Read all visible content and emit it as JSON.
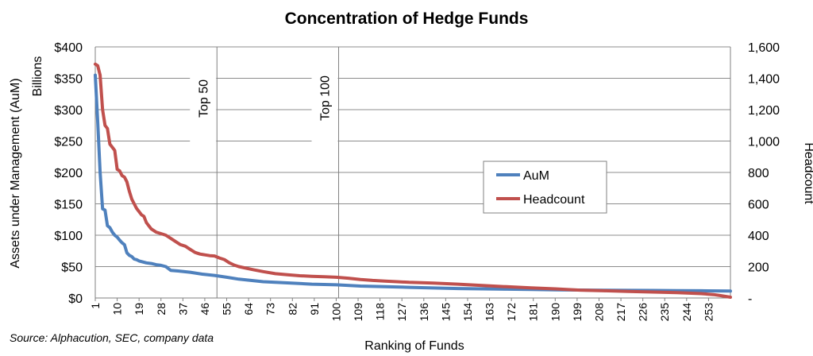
{
  "chart_data": {
    "type": "line",
    "title": "Concentration of Hedge Funds",
    "xlabel": "Ranking of Funds",
    "ylabel_left": "Assets under Management (AuM)",
    "ylabel_left_unit": "Billions",
    "ylabel_right": "Headcount",
    "source": "Source: Alphacution, SEC, company data",
    "legend_position": "center-right",
    "grid": true,
    "xlim": [
      1,
      262
    ],
    "ylim_left": [
      0,
      400
    ],
    "ylim_right": [
      0,
      1600
    ],
    "x_ticks": [
      1,
      10,
      19,
      28,
      37,
      46,
      55,
      64,
      73,
      82,
      91,
      100,
      109,
      118,
      127,
      136,
      145,
      154,
      163,
      172,
      181,
      190,
      199,
      208,
      217,
      226,
      235,
      244,
      253
    ],
    "y_ticks_left": [
      "$0",
      "$50",
      "$100",
      "$150",
      "$200",
      "$250",
      "$300",
      "$350",
      "$400"
    ],
    "y_ticks_right": [
      "-",
      "200",
      "400",
      "600",
      "800",
      "1,000",
      "1,200",
      "1,400",
      "1,600"
    ],
    "annotations": [
      {
        "text": "Top 50",
        "x": 51
      },
      {
        "text": "Top 100",
        "x": 101
      }
    ],
    "series": [
      {
        "name": "AuM",
        "axis": "left",
        "color": "#4F81BD",
        "points": [
          [
            1,
            355
          ],
          [
            2,
            280
          ],
          [
            3,
            200
          ],
          [
            4,
            142
          ],
          [
            5,
            140
          ],
          [
            6,
            115
          ],
          [
            7,
            112
          ],
          [
            8,
            105
          ],
          [
            9,
            100
          ],
          [
            10,
            97
          ],
          [
            11,
            92
          ],
          [
            12,
            88
          ],
          [
            13,
            85
          ],
          [
            14,
            72
          ],
          [
            15,
            68
          ],
          [
            16,
            66
          ],
          [
            17,
            62
          ],
          [
            18,
            61
          ],
          [
            19,
            59
          ],
          [
            20,
            58
          ],
          [
            22,
            56
          ],
          [
            24,
            55
          ],
          [
            26,
            53
          ],
          [
            28,
            52
          ],
          [
            30,
            50
          ],
          [
            32,
            44
          ],
          [
            35,
            43
          ],
          [
            40,
            41
          ],
          [
            45,
            38
          ],
          [
            50,
            36
          ],
          [
            55,
            33
          ],
          [
            60,
            30
          ],
          [
            65,
            28
          ],
          [
            70,
            26
          ],
          [
            75,
            25
          ],
          [
            80,
            24
          ],
          [
            90,
            22
          ],
          [
            100,
            21
          ],
          [
            110,
            19
          ],
          [
            120,
            18
          ],
          [
            130,
            17
          ],
          [
            140,
            16
          ],
          [
            150,
            15
          ],
          [
            160,
            14.5
          ],
          [
            170,
            14
          ],
          [
            180,
            13.5
          ],
          [
            190,
            13
          ],
          [
            200,
            12.7
          ],
          [
            210,
            12.4
          ],
          [
            220,
            12.2
          ],
          [
            230,
            12
          ],
          [
            240,
            11.8
          ],
          [
            250,
            11.5
          ],
          [
            262,
            11
          ]
        ]
      },
      {
        "name": "Headcount",
        "axis": "right",
        "color": "#C0504D",
        "points": [
          [
            1,
            1490
          ],
          [
            2,
            1480
          ],
          [
            3,
            1420
          ],
          [
            4,
            1200
          ],
          [
            5,
            1100
          ],
          [
            6,
            1080
          ],
          [
            7,
            980
          ],
          [
            8,
            960
          ],
          [
            9,
            940
          ],
          [
            10,
            820
          ],
          [
            11,
            810
          ],
          [
            12,
            780
          ],
          [
            13,
            770
          ],
          [
            14,
            740
          ],
          [
            15,
            680
          ],
          [
            16,
            630
          ],
          [
            17,
            600
          ],
          [
            18,
            570
          ],
          [
            19,
            550
          ],
          [
            20,
            530
          ],
          [
            21,
            520
          ],
          [
            22,
            480
          ],
          [
            24,
            440
          ],
          [
            26,
            420
          ],
          [
            28,
            410
          ],
          [
            30,
            400
          ],
          [
            32,
            380
          ],
          [
            34,
            360
          ],
          [
            36,
            340
          ],
          [
            38,
            330
          ],
          [
            40,
            310
          ],
          [
            42,
            290
          ],
          [
            44,
            280
          ],
          [
            46,
            275
          ],
          [
            48,
            270
          ],
          [
            50,
            268
          ],
          [
            52,
            255
          ],
          [
            54,
            245
          ],
          [
            56,
            225
          ],
          [
            58,
            210
          ],
          [
            60,
            200
          ],
          [
            63,
            190
          ],
          [
            66,
            180
          ],
          [
            70,
            168
          ],
          [
            75,
            155
          ],
          [
            80,
            148
          ],
          [
            85,
            142
          ],
          [
            90,
            138
          ],
          [
            95,
            135
          ],
          [
            100,
            132
          ],
          [
            105,
            126
          ],
          [
            110,
            118
          ],
          [
            115,
            112
          ],
          [
            120,
            108
          ],
          [
            125,
            104
          ],
          [
            130,
            100
          ],
          [
            140,
            95
          ],
          [
            150,
            88
          ],
          [
            160,
            80
          ],
          [
            170,
            72
          ],
          [
            180,
            65
          ],
          [
            190,
            58
          ],
          [
            200,
            50
          ],
          [
            210,
            46
          ],
          [
            220,
            42
          ],
          [
            230,
            38
          ],
          [
            240,
            34
          ],
          [
            250,
            28
          ],
          [
            255,
            22
          ],
          [
            258,
            15
          ],
          [
            262,
            5
          ]
        ]
      }
    ]
  }
}
